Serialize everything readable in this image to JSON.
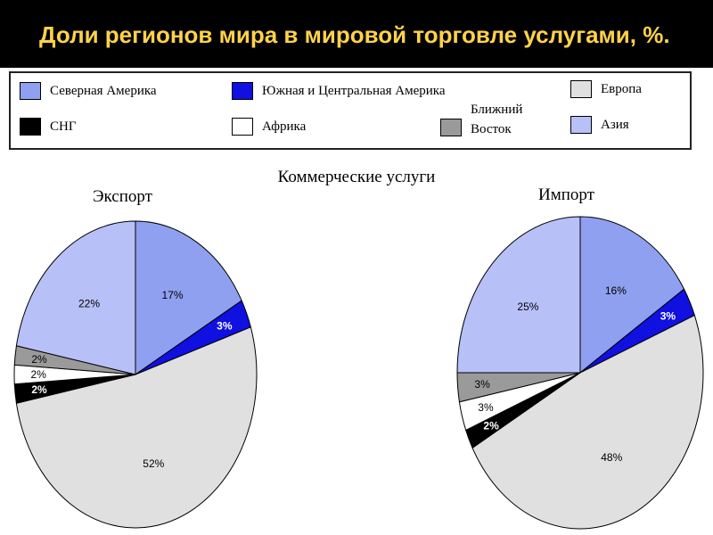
{
  "title": "Доли регионов мира в мировой торговле услугами, %.",
  "legend": [
    {
      "key": "north_america",
      "label": "Северная Америка",
      "color": "#8fa0f0"
    },
    {
      "key": "south_central_america",
      "label": "Южная и Центральная Америка",
      "color": "#1010e0"
    },
    {
      "key": "europe",
      "label": "Европа",
      "color": "#e0e0e0"
    },
    {
      "key": "cis",
      "label": "СНГ",
      "color": "#000000"
    },
    {
      "key": "africa",
      "label": "Африка",
      "color": "#ffffff"
    },
    {
      "key": "middle_east",
      "label": "Ближний Восток",
      "color": "#9a9a9a"
    },
    {
      "key": "asia",
      "label": "Азия",
      "color": "#b8c0f8"
    }
  ],
  "chart_data": [
    {
      "type": "pie",
      "title": "Коммерческие услуги",
      "subtitle": "Экспорт",
      "categories": [
        "Северная Америка",
        "Южная и Центральная Америка",
        "Европа",
        "СНГ",
        "Африка",
        "Ближний Восток",
        "Азия"
      ],
      "values": [
        17,
        3,
        52,
        2,
        2,
        2,
        22
      ],
      "labels": [
        "17%",
        "3%",
        "52%",
        "2%",
        "2%",
        "2%",
        "22%"
      ]
    },
    {
      "type": "pie",
      "title": "Коммерческие услуги",
      "subtitle": "Импорт",
      "categories": [
        "Северная Америка",
        "Южная и Центральная Америка",
        "Европа",
        "СНГ",
        "Африка",
        "Ближний Восток",
        "Азия"
      ],
      "values": [
        16,
        3,
        48,
        2,
        3,
        3,
        25
      ],
      "labels": [
        "16%",
        "3%",
        "48%",
        "2%",
        "3%",
        "3%",
        "25%"
      ]
    }
  ]
}
